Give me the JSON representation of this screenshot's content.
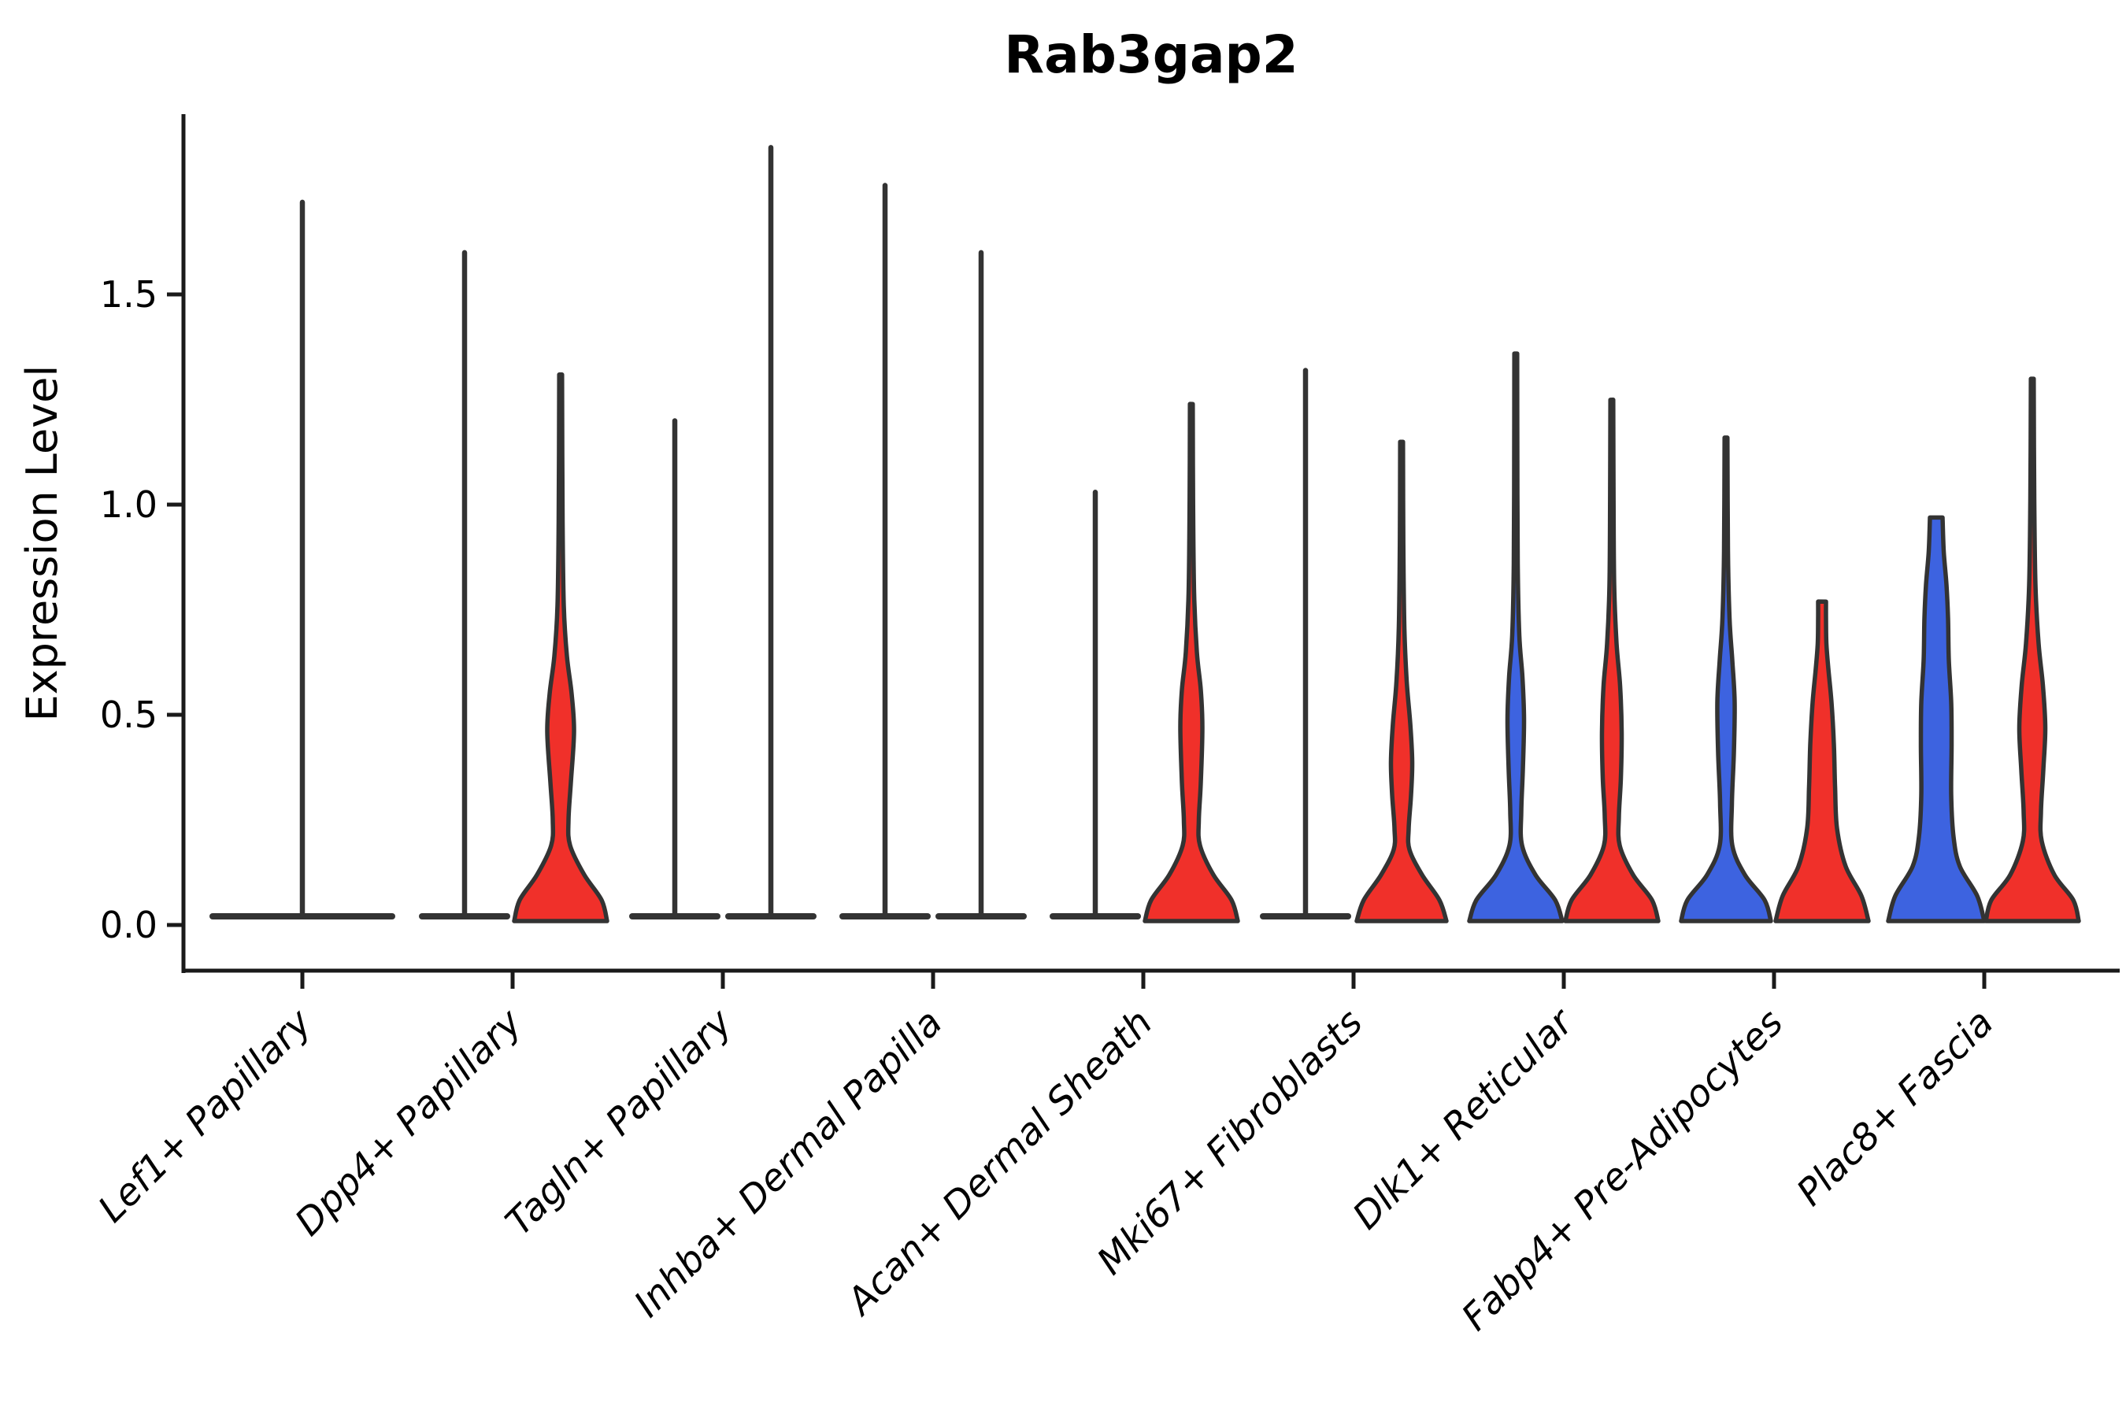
{
  "title": "Rab3gap2",
  "axes": {
    "ylabel": "Expression Level",
    "ytick_labels": [
      "0.0",
      "0.5",
      "1.0",
      "1.5"
    ]
  },
  "chart_data": {
    "type": "violin",
    "title": "Rab3gap2",
    "xlabel": "",
    "ylabel": "Expression Level",
    "yticks": [
      0.0,
      0.5,
      1.0,
      1.5
    ],
    "ylim": [
      -0.05,
      1.93
    ],
    "grid": "off",
    "legend_position": "none",
    "split_colors": {
      "conditionA": "#3D63E0",
      "conditionB": "#F0302A"
    },
    "outline_color": "#333333",
    "categories": [
      "Lef1+ Papillary",
      "Dpp4+ Papillary",
      "Tagln+ Papillary",
      "Inhba+ Dermal Papilla",
      "Acan+ Dermal Sheath",
      "Mki67+ Fibroblasts",
      "Dlk1+ Reticular",
      "Fabp4+ Pre-Adipocytes",
      "Plac8+ Fascia"
    ],
    "groups": [
      {
        "category": "Lef1+ Papillary",
        "violins": [
          {
            "split": "single",
            "kind": "flat",
            "color": "none",
            "offset": 0,
            "half_width": 118,
            "max": 1.71
          }
        ]
      },
      {
        "category": "Dpp4+ Papillary",
        "violins": [
          {
            "split": "A",
            "kind": "flat",
            "color": "none",
            "offset": -61,
            "half_width": 58,
            "max": 1.59
          },
          {
            "split": "B",
            "kind": "shaped",
            "color": "#F0302A",
            "offset": 61,
            "max": 1.3,
            "flat_top": false,
            "profile": [
              [
                0,
                59
              ],
              [
                0.05,
                52
              ],
              [
                0.11,
                30
              ],
              [
                0.18,
                12
              ],
              [
                0.24,
                10
              ],
              [
                0.33,
                13
              ],
              [
                0.45,
                17
              ],
              [
                0.54,
                14
              ],
              [
                0.63,
                8
              ],
              [
                0.75,
                4
              ],
              [
                0.95,
                2.5
              ],
              [
                1.3,
                1.8
              ]
            ]
          }
        ]
      },
      {
        "category": "Tagln+ Papillary",
        "violins": [
          {
            "split": "A",
            "kind": "flat",
            "color": "none",
            "offset": -61,
            "half_width": 58,
            "max": 1.19
          },
          {
            "split": "B",
            "kind": "flat",
            "color": "none",
            "offset": 61,
            "half_width": 58,
            "max": 1.84
          }
        ]
      },
      {
        "category": "Inhba+ Dermal Papilla",
        "violins": [
          {
            "split": "A",
            "kind": "flat",
            "color": "none",
            "offset": -61,
            "half_width": 58,
            "max": 1.75
          },
          {
            "split": "B",
            "kind": "flat",
            "color": "none",
            "offset": 61,
            "half_width": 58,
            "max": 1.59
          }
        ]
      },
      {
        "category": "Acan+ Dermal Sheath",
        "violins": [
          {
            "split": "A",
            "kind": "flat",
            "color": "none",
            "offset": -61,
            "half_width": 58,
            "max": 1.02
          },
          {
            "split": "B",
            "kind": "shaped",
            "color": "#F0302A",
            "offset": 61,
            "max": 1.23,
            "flat_top": false,
            "profile": [
              [
                0,
                59
              ],
              [
                0.05,
                51
              ],
              [
                0.11,
                28
              ],
              [
                0.18,
                11
              ],
              [
                0.24,
                9.5
              ],
              [
                0.33,
                12
              ],
              [
                0.46,
                14
              ],
              [
                0.55,
                12
              ],
              [
                0.64,
                7
              ],
              [
                0.78,
                3.5
              ],
              [
                1.0,
                2.2
              ],
              [
                1.23,
                1.8
              ]
            ]
          }
        ]
      },
      {
        "category": "Mki67+ Fibroblasts",
        "violins": [
          {
            "split": "A",
            "kind": "flat",
            "color": "none",
            "offset": -61,
            "half_width": 58,
            "max": 1.31
          },
          {
            "split": "B",
            "kind": "shaped",
            "color": "#F0302A",
            "offset": 61,
            "max": 1.14,
            "flat_top": false,
            "profile": [
              [
                0,
                57
              ],
              [
                0.05,
                48
              ],
              [
                0.11,
                26
              ],
              [
                0.17,
                10
              ],
              [
                0.22,
                9
              ],
              [
                0.3,
                12
              ],
              [
                0.38,
                13.5
              ],
              [
                0.47,
                11
              ],
              [
                0.57,
                6.5
              ],
              [
                0.7,
                3.5
              ],
              [
                0.9,
                2.2
              ],
              [
                1.14,
                1.8
              ]
            ]
          }
        ]
      },
      {
        "category": "Dlk1+ Reticular",
        "violins": [
          {
            "split": "A",
            "kind": "shaped",
            "color": "#3D63E0",
            "offset": -61,
            "max": 1.35,
            "flat_top": false,
            "profile": [
              [
                0,
                59
              ],
              [
                0.05,
                50
              ],
              [
                0.11,
                25
              ],
              [
                0.18,
                8
              ],
              [
                0.26,
                7
              ],
              [
                0.36,
                9
              ],
              [
                0.48,
                10.5
              ],
              [
                0.58,
                8.5
              ],
              [
                0.68,
                4.5
              ],
              [
                0.85,
                2.5
              ],
              [
                1.1,
                2
              ],
              [
                1.35,
                1.8
              ]
            ]
          },
          {
            "split": "B",
            "kind": "shaped",
            "color": "#F0302A",
            "offset": 61,
            "max": 1.24,
            "flat_top": false,
            "profile": [
              [
                0,
                59
              ],
              [
                0.05,
                51
              ],
              [
                0.11,
                27
              ],
              [
                0.18,
                10
              ],
              [
                0.25,
                9
              ],
              [
                0.34,
                11.5
              ],
              [
                0.45,
                12.5
              ],
              [
                0.56,
                10.5
              ],
              [
                0.66,
                6
              ],
              [
                0.8,
                3
              ],
              [
                1.0,
                2.2
              ],
              [
                1.24,
                1.8
              ]
            ]
          }
        ]
      },
      {
        "category": "Fabp4+ Pre-Adipocytes",
        "violins": [
          {
            "split": "A",
            "kind": "shaped",
            "color": "#3D63E0",
            "offset": -61,
            "max": 1.15,
            "flat_top": false,
            "profile": [
              [
                0,
                57
              ],
              [
                0.05,
                49
              ],
              [
                0.11,
                24
              ],
              [
                0.18,
                8
              ],
              [
                0.28,
                7.5
              ],
              [
                0.4,
                10
              ],
              [
                0.52,
                11
              ],
              [
                0.62,
                8
              ],
              [
                0.72,
                4.5
              ],
              [
                0.88,
                2.5
              ],
              [
                1.15,
                1.8
              ]
            ]
          },
          {
            "split": "B",
            "kind": "shaped",
            "color": "#F0302A",
            "offset": 61,
            "max": 0.76,
            "flat_top": true,
            "profile": [
              [
                0,
                59
              ],
              [
                0.06,
                50
              ],
              [
                0.13,
                30
              ],
              [
                0.22,
                19
              ],
              [
                0.32,
                16.5
              ],
              [
                0.42,
                15
              ],
              [
                0.52,
                12
              ],
              [
                0.6,
                8
              ],
              [
                0.66,
                5.5
              ],
              [
                0.72,
                5
              ],
              [
                0.76,
                5
              ]
            ]
          }
        ]
      },
      {
        "category": "Plac8+ Fascia",
        "violins": [
          {
            "split": "A",
            "kind": "shaped",
            "color": "#3D63E0",
            "offset": -61,
            "max": 0.96,
            "flat_top": true,
            "profile": [
              [
                0,
                61
              ],
              [
                0.06,
                52
              ],
              [
                0.13,
                30
              ],
              [
                0.2,
                22
              ],
              [
                0.3,
                19
              ],
              [
                0.42,
                19.5
              ],
              [
                0.52,
                19
              ],
              [
                0.62,
                16
              ],
              [
                0.72,
                15
              ],
              [
                0.8,
                13
              ],
              [
                0.88,
                9.5
              ],
              [
                0.96,
                8
              ]
            ]
          },
          {
            "split": "B",
            "kind": "shaped",
            "color": "#F0302A",
            "offset": 61,
            "max": 1.29,
            "flat_top": false,
            "profile": [
              [
                0,
                59
              ],
              [
                0.05,
                52
              ],
              [
                0.11,
                28
              ],
              [
                0.19,
                12
              ],
              [
                0.26,
                11
              ],
              [
                0.36,
                14
              ],
              [
                0.46,
                16.5
              ],
              [
                0.56,
                13.5
              ],
              [
                0.66,
                8
              ],
              [
                0.8,
                4
              ],
              [
                1.0,
                2.5
              ],
              [
                1.29,
                1.8
              ]
            ]
          }
        ]
      }
    ]
  }
}
